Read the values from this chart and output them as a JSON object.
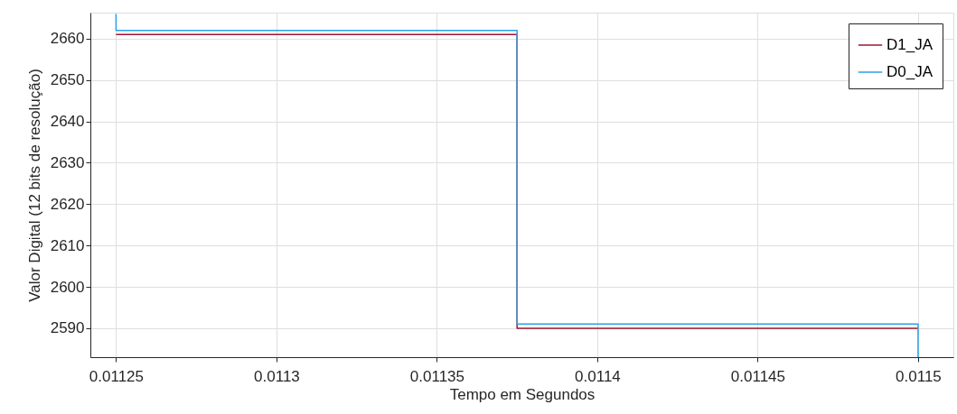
{
  "chart_data": {
    "type": "step",
    "xlabel": "Tempo em Segundos",
    "ylabel": "Valor Digital (12 bits de resolução)",
    "xlim": [
      0.011242,
      0.011511
    ],
    "ylim": [
      2583,
      2666.3
    ],
    "xticks": [
      0.01125,
      0.0113,
      0.01135,
      0.0114,
      0.01145,
      0.0115
    ],
    "yticks": [
      2590,
      2600,
      2610,
      2620,
      2630,
      2640,
      2650,
      2660
    ],
    "grid": true,
    "legend": "top right",
    "line_style": "solid",
    "marker": "none",
    "series": [
      {
        "name": "D1_JA",
        "color": "#a2142f",
        "x": [
          0.01125,
          0.011375,
          0.0115
        ],
        "values": [
          2661,
          2590,
          2590
        ]
      },
      {
        "name": "D0_JA",
        "color": "#2aa0e6",
        "x": [
          0.01125,
          0.01125,
          0.011375,
          0.0115,
          0.0115
        ],
        "values": [
          2666,
          2662,
          2591,
          2591,
          2583
        ]
      }
    ]
  }
}
